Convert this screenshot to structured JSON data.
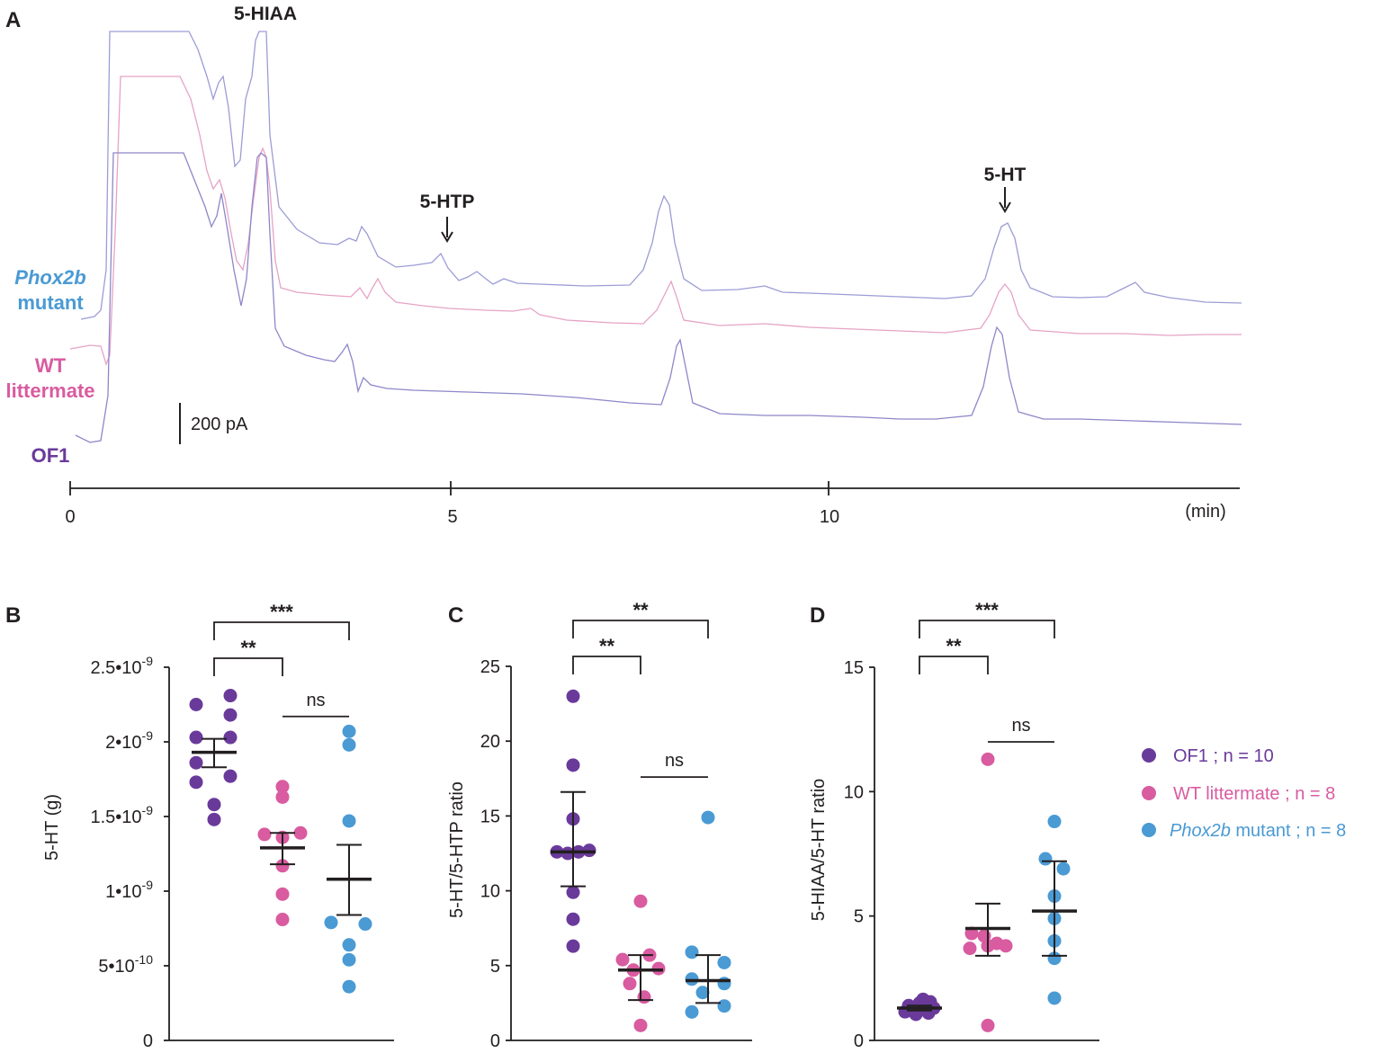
{
  "colors": {
    "OF1": "#6a3a9b",
    "WT": "#d95ba0",
    "Phox2b": "#4a9ad4",
    "axis": "#231f20",
    "trace_OF1": "#8d87c9",
    "trace_WT": "#e6a3c6",
    "trace_Phox2b": "#9c9cd6"
  },
  "panel_a": {
    "letter": "A",
    "labels": {
      "hiaa": "5-HIAA",
      "htp": "5-HTP",
      "ht": "5-HT",
      "phox_line1": "Phox2b",
      "phox_line2": "mutant",
      "wt_line1": "WT",
      "wt_line2": "littermate",
      "of1": "OF1",
      "scalebar": "200 pA"
    },
    "time_axis": {
      "ticks": [
        "0",
        "5",
        "10"
      ],
      "unit": "(min)",
      "range": [
        0,
        15.4
      ]
    }
  },
  "legend": {
    "items": [
      {
        "group": "OF1",
        "text": "OF1 ; n = 10",
        "italic_prefix": "",
        "rest": ""
      },
      {
        "group": "WT",
        "text": "WT littermate ; n = 8",
        "italic_prefix": "",
        "rest": ""
      },
      {
        "group": "Phox2b",
        "text": "",
        "italic_prefix": "Phox2b",
        "rest": " mutant ; n = 8"
      }
    ]
  },
  "chart_data": [
    {
      "panel": "B",
      "type": "scatter",
      "ylabel": "5-HT (g)",
      "ylim": [
        0,
        2.5e-09
      ],
      "yticks": [
        {
          "value": 0,
          "mant": "0",
          "exp": ""
        },
        {
          "value": 5e-10,
          "mant": "5•10",
          "exp": "-10"
        },
        {
          "value": 1e-09,
          "mant": "1•10",
          "exp": "-9"
        },
        {
          "value": 1.5e-09,
          "mant": "1.5•10",
          "exp": "-9"
        },
        {
          "value": 2e-09,
          "mant": "2•10",
          "exp": "-9"
        },
        {
          "value": 2.5e-09,
          "mant": "2.5•10",
          "exp": "-9"
        }
      ],
      "groups": [
        {
          "name": "OF1",
          "mean": 1.93e-09,
          "sem": [
            1.83e-09,
            2.02e-09
          ],
          "points": [
            [
              -20,
              2.25e-09
            ],
            [
              18,
              2.31e-09
            ],
            [
              18,
              2.18e-09
            ],
            [
              -20,
              2.03e-09
            ],
            [
              18,
              2.03e-09
            ],
            [
              -20,
              1.86e-09
            ],
            [
              18,
              1.77e-09
            ],
            [
              -20,
              1.73e-09
            ],
            [
              0,
              1.58e-09
            ],
            [
              0,
              1.48e-09
            ]
          ]
        },
        {
          "name": "WT",
          "mean": 1.29e-09,
          "sem": [
            1.18e-09,
            1.39e-09
          ],
          "points": [
            [
              0,
              1.7e-09
            ],
            [
              0,
              1.63e-09
            ],
            [
              -20,
              1.38e-09
            ],
            [
              20,
              1.39e-09
            ],
            [
              0,
              1.36e-09
            ],
            [
              0,
              1.17e-09
            ],
            [
              0,
              9.8e-10
            ],
            [
              0,
              8.1e-10
            ]
          ]
        },
        {
          "name": "Phox2b",
          "mean": 1.08e-09,
          "sem": [
            8.4e-10,
            1.31e-09
          ],
          "points": [
            [
              0,
              2.07e-09
            ],
            [
              0,
              1.98e-09
            ],
            [
              0,
              1.47e-09
            ],
            [
              -20,
              7.9e-10
            ],
            [
              18,
              7.8e-10
            ],
            [
              0,
              6.4e-10
            ],
            [
              0,
              5.4e-10
            ],
            [
              0,
              3.6e-10
            ]
          ]
        }
      ],
      "brackets": [
        {
          "label": "***",
          "from": 0,
          "to": 2,
          "level": "high"
        },
        {
          "label": "**",
          "from": 0,
          "to": 1,
          "level": "mid"
        }
      ],
      "ns": {
        "label": "ns",
        "from": 1,
        "to": 2,
        "y": 2.17e-09
      }
    },
    {
      "panel": "C",
      "type": "scatter",
      "ylabel": "5-HT/5-HTP ratio",
      "ylim": [
        0,
        25
      ],
      "yticks": [
        {
          "value": 0,
          "mant": "0",
          "exp": ""
        },
        {
          "value": 5,
          "mant": "5",
          "exp": ""
        },
        {
          "value": 10,
          "mant": "10",
          "exp": ""
        },
        {
          "value": 15,
          "mant": "15",
          "exp": ""
        },
        {
          "value": 20,
          "mant": "20",
          "exp": ""
        },
        {
          "value": 25,
          "mant": "25",
          "exp": ""
        }
      ],
      "groups": [
        {
          "name": "OF1",
          "mean": 12.6,
          "sem": [
            10.3,
            16.6
          ],
          "points": [
            [
              0,
              23.0
            ],
            [
              0,
              18.4
            ],
            [
              0,
              14.8
            ],
            [
              -18,
              12.6
            ],
            [
              -6,
              12.5
            ],
            [
              6,
              12.6
            ],
            [
              18,
              12.7
            ],
            [
              0,
              9.9
            ],
            [
              0,
              8.1
            ],
            [
              0,
              6.3
            ]
          ]
        },
        {
          "name": "WT",
          "mean": 4.7,
          "sem": [
            2.7,
            5.7
          ],
          "points": [
            [
              0,
              9.3
            ],
            [
              -20,
              5.4
            ],
            [
              -8,
              4.7
            ],
            [
              10,
              5.7
            ],
            [
              20,
              4.8
            ],
            [
              -12,
              3.8
            ],
            [
              4,
              2.9
            ],
            [
              0,
              1.0
            ]
          ]
        },
        {
          "name": "Phox2b",
          "mean": 4.0,
          "sem": [
            2.5,
            5.7
          ],
          "points": [
            [
              0,
              14.9
            ],
            [
              -18,
              5.9
            ],
            [
              18,
              5.2
            ],
            [
              -18,
              4.1
            ],
            [
              18,
              3.8
            ],
            [
              -6,
              3.2
            ],
            [
              18,
              2.3
            ],
            [
              -18,
              1.9
            ]
          ]
        }
      ],
      "brackets": [
        {
          "label": "**",
          "from": 0,
          "to": 2,
          "level": "high"
        },
        {
          "label": "**",
          "from": 0,
          "to": 1,
          "level": "mid"
        }
      ],
      "ns": {
        "label": "ns",
        "from": 1,
        "to": 2,
        "y": 17.6
      }
    },
    {
      "panel": "D",
      "type": "scatter",
      "ylabel": "5-HIAA/5-HT ratio",
      "ylim": [
        0,
        15
      ],
      "yticks": [
        {
          "value": 0,
          "mant": "0",
          "exp": ""
        },
        {
          "value": 5,
          "mant": "5",
          "exp": ""
        },
        {
          "value": 10,
          "mant": "10",
          "exp": ""
        },
        {
          "value": 15,
          "mant": "15",
          "exp": ""
        }
      ],
      "groups": [
        {
          "name": "OF1",
          "mean": 1.3,
          "sem": [
            1.2,
            1.4
          ],
          "points": [
            [
              -16,
              1.15
            ],
            [
              -6,
              1.2
            ],
            [
              6,
              1.25
            ],
            [
              16,
              1.3
            ],
            [
              -12,
              1.4
            ],
            [
              0,
              1.5
            ],
            [
              12,
              1.55
            ],
            [
              4,
              1.65
            ],
            [
              -4,
              1.05
            ],
            [
              10,
              1.1
            ]
          ]
        },
        {
          "name": "WT",
          "mean": 4.5,
          "sem": [
            3.4,
            5.5
          ],
          "points": [
            [
              0,
              11.3
            ],
            [
              -18,
              4.3
            ],
            [
              -4,
              4.2
            ],
            [
              10,
              3.9
            ],
            [
              20,
              3.8
            ],
            [
              -20,
              3.7
            ],
            [
              0,
              3.8
            ],
            [
              0,
              0.6
            ]
          ]
        },
        {
          "name": "Phox2b",
          "mean": 5.2,
          "sem": [
            3.4,
            7.2
          ],
          "points": [
            [
              0,
              8.8
            ],
            [
              -10,
              7.3
            ],
            [
              10,
              6.9
            ],
            [
              0,
              5.8
            ],
            [
              0,
              4.9
            ],
            [
              0,
              4.0
            ],
            [
              0,
              3.3
            ],
            [
              0,
              1.7
            ]
          ]
        }
      ],
      "brackets": [
        {
          "label": "***",
          "from": 0,
          "to": 2,
          "level": "high"
        },
        {
          "label": "**",
          "from": 0,
          "to": 1,
          "level": "mid"
        }
      ],
      "ns": {
        "label": "ns",
        "from": 1,
        "to": 2,
        "y": 12.0
      }
    }
  ]
}
